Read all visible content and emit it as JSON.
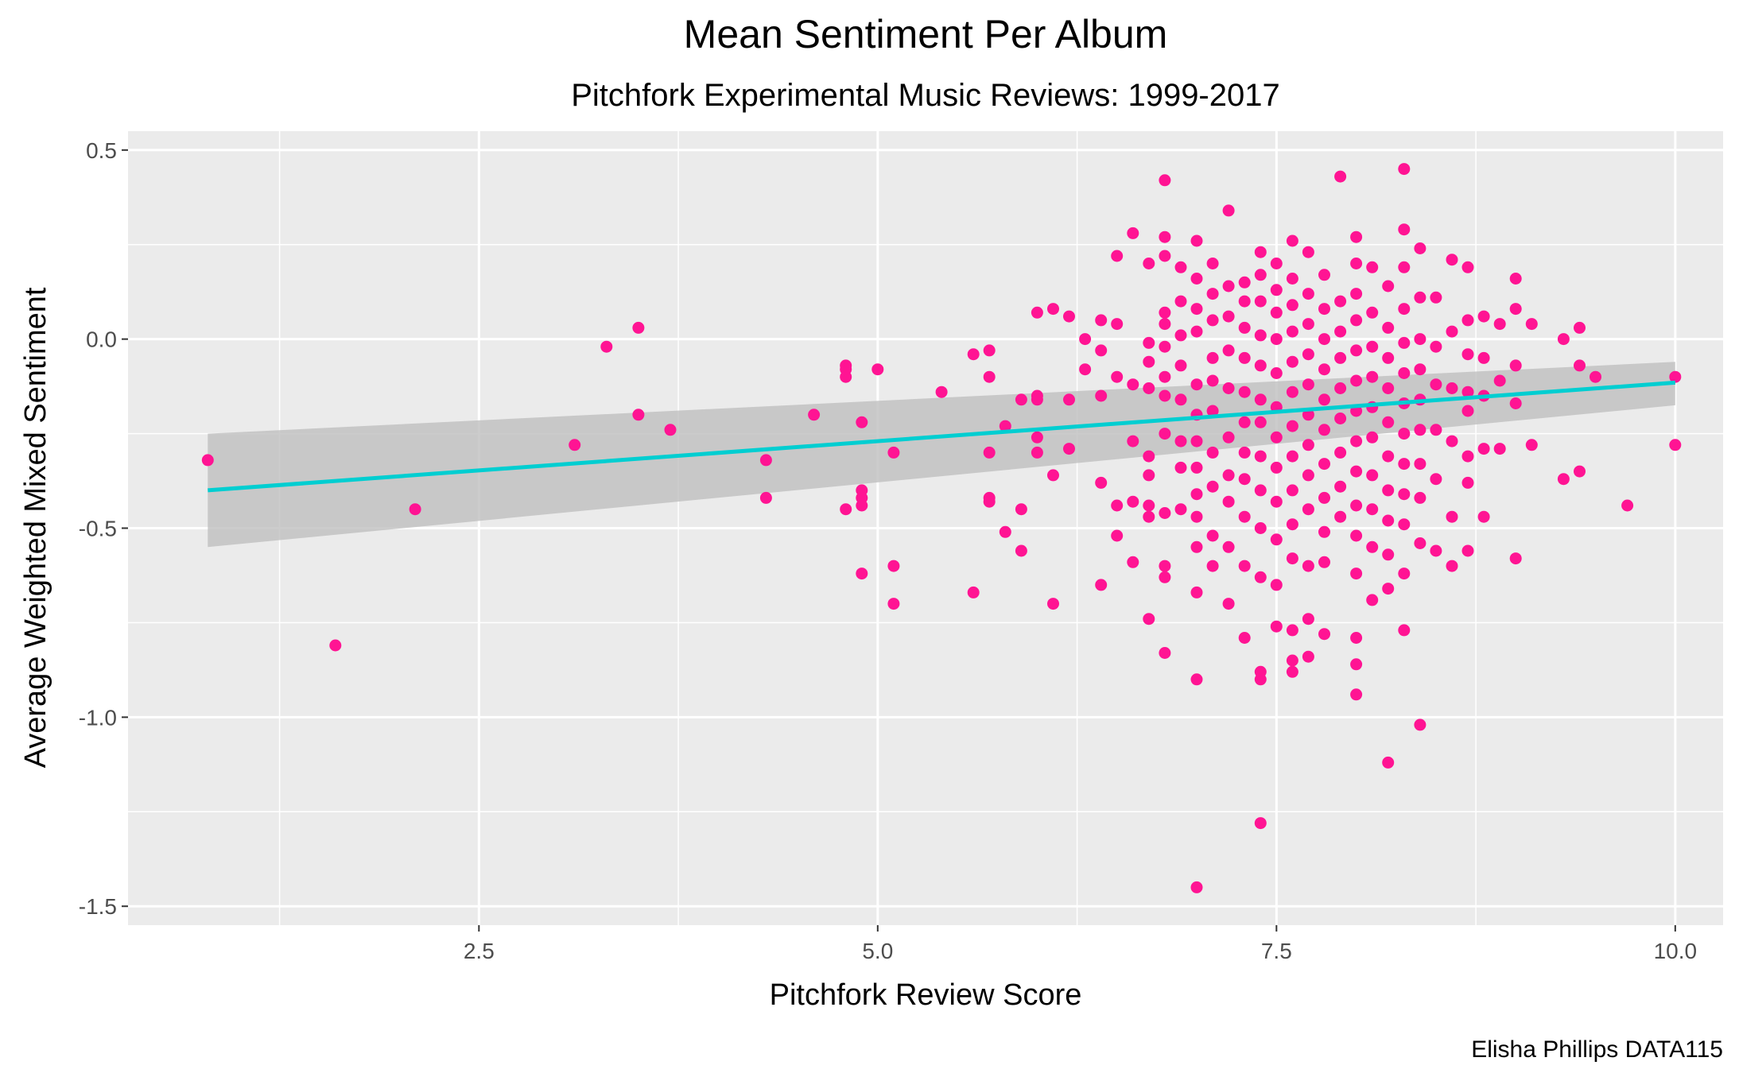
{
  "chart_data": {
    "type": "scatter",
    "title": "Mean Sentiment Per Album",
    "subtitle": "Pitchfork Experimental Music Reviews: 1999-2017",
    "xlabel": "Pitchfork Review Score",
    "ylabel": "Average Weighted Mixed Sentiment",
    "caption": "Elisha Phillips DATA115",
    "xlim": [
      0.3,
      10.3
    ],
    "ylim": [
      -1.55,
      0.55
    ],
    "x_ticks": [
      2.5,
      5.0,
      7.5,
      10.0
    ],
    "x_tick_labels": [
      "2.5",
      "5.0",
      "7.5",
      "10.0"
    ],
    "y_ticks": [
      0.5,
      0.0,
      -0.5,
      -1.0,
      -1.5
    ],
    "y_tick_labels": [
      "0.5",
      "0.0",
      "-0.5",
      "-1.0",
      "-1.5"
    ],
    "grid": true,
    "point_color": "#ff1493",
    "trend_color": "#00ced1",
    "band_color": "#bfbfbf",
    "panel_color": "#ebebeb",
    "trend_line": {
      "x": [
        0.8,
        10.0
      ],
      "y": [
        -0.4,
        -0.115
      ],
      "ci_lower": [
        -0.55,
        -0.175
      ],
      "ci_upper": [
        -0.25,
        -0.06
      ]
    },
    "points": [
      [
        0.8,
        -0.32
      ],
      [
        1.6,
        -0.81
      ],
      [
        2.1,
        -0.45
      ],
      [
        3.1,
        -0.28
      ],
      [
        3.3,
        -0.02
      ],
      [
        3.5,
        0.03
      ],
      [
        3.5,
        -0.2
      ],
      [
        3.7,
        -0.24
      ],
      [
        4.3,
        -0.32
      ],
      [
        4.3,
        -0.42
      ],
      [
        4.6,
        -0.2
      ],
      [
        4.8,
        -0.07
      ],
      [
        4.8,
        -0.08
      ],
      [
        4.8,
        -0.1
      ],
      [
        4.8,
        -0.45
      ],
      [
        4.9,
        -0.22
      ],
      [
        4.9,
        -0.4
      ],
      [
        4.9,
        -0.42
      ],
      [
        4.9,
        -0.44
      ],
      [
        4.9,
        -0.62
      ],
      [
        5.0,
        -0.08
      ],
      [
        5.1,
        -0.3
      ],
      [
        5.1,
        -0.6
      ],
      [
        5.1,
        -0.7
      ],
      [
        5.4,
        -0.14
      ],
      [
        5.6,
        -0.04
      ],
      [
        5.6,
        -0.67
      ],
      [
        5.7,
        -0.03
      ],
      [
        5.7,
        -0.1
      ],
      [
        5.7,
        -0.3
      ],
      [
        5.7,
        -0.42
      ],
      [
        5.7,
        -0.43
      ],
      [
        5.8,
        -0.23
      ],
      [
        5.8,
        -0.51
      ],
      [
        5.9,
        -0.16
      ],
      [
        5.9,
        -0.45
      ],
      [
        5.9,
        -0.56
      ],
      [
        6.0,
        0.07
      ],
      [
        6.0,
        -0.15
      ],
      [
        6.0,
        -0.16
      ],
      [
        6.0,
        -0.26
      ],
      [
        6.0,
        -0.3
      ],
      [
        6.1,
        0.08
      ],
      [
        6.1,
        -0.36
      ],
      [
        6.1,
        -0.7
      ],
      [
        6.2,
        0.06
      ],
      [
        6.2,
        -0.16
      ],
      [
        6.2,
        -0.29
      ],
      [
        6.3,
        0.0
      ],
      [
        6.3,
        -0.08
      ],
      [
        6.4,
        0.05
      ],
      [
        6.4,
        -0.03
      ],
      [
        6.4,
        -0.15
      ],
      [
        6.4,
        -0.38
      ],
      [
        6.4,
        -0.65
      ],
      [
        6.5,
        0.22
      ],
      [
        6.5,
        0.04
      ],
      [
        6.5,
        -0.1
      ],
      [
        6.5,
        -0.44
      ],
      [
        6.5,
        -0.52
      ],
      [
        6.6,
        0.28
      ],
      [
        6.6,
        -0.12
      ],
      [
        6.6,
        -0.27
      ],
      [
        6.6,
        -0.43
      ],
      [
        6.6,
        -0.59
      ],
      [
        6.7,
        0.2
      ],
      [
        6.7,
        -0.01
      ],
      [
        6.7,
        -0.06
      ],
      [
        6.7,
        -0.13
      ],
      [
        6.7,
        -0.31
      ],
      [
        6.7,
        -0.36
      ],
      [
        6.7,
        -0.44
      ],
      [
        6.7,
        -0.47
      ],
      [
        6.7,
        -0.74
      ],
      [
        6.8,
        0.42
      ],
      [
        6.8,
        0.27
      ],
      [
        6.8,
        0.22
      ],
      [
        6.8,
        0.07
      ],
      [
        6.8,
        0.04
      ],
      [
        6.8,
        -0.02
      ],
      [
        6.8,
        -0.1
      ],
      [
        6.8,
        -0.15
      ],
      [
        6.8,
        -0.25
      ],
      [
        6.8,
        -0.46
      ],
      [
        6.8,
        -0.6
      ],
      [
        6.8,
        -0.63
      ],
      [
        6.8,
        -0.83
      ],
      [
        6.9,
        0.19
      ],
      [
        6.9,
        0.1
      ],
      [
        6.9,
        0.01
      ],
      [
        6.9,
        -0.07
      ],
      [
        6.9,
        -0.16
      ],
      [
        6.9,
        -0.27
      ],
      [
        6.9,
        -0.34
      ],
      [
        6.9,
        -0.45
      ],
      [
        7.0,
        0.26
      ],
      [
        7.0,
        0.16
      ],
      [
        7.0,
        0.08
      ],
      [
        7.0,
        0.02
      ],
      [
        7.0,
        -0.12
      ],
      [
        7.0,
        -0.2
      ],
      [
        7.0,
        -0.27
      ],
      [
        7.0,
        -0.34
      ],
      [
        7.0,
        -0.41
      ],
      [
        7.0,
        -0.47
      ],
      [
        7.0,
        -0.55
      ],
      [
        7.0,
        -0.67
      ],
      [
        7.0,
        -0.9
      ],
      [
        7.0,
        -1.45
      ],
      [
        7.1,
        0.2
      ],
      [
        7.1,
        0.12
      ],
      [
        7.1,
        0.05
      ],
      [
        7.1,
        -0.05
      ],
      [
        7.1,
        -0.11
      ],
      [
        7.1,
        -0.19
      ],
      [
        7.1,
        -0.3
      ],
      [
        7.1,
        -0.39
      ],
      [
        7.1,
        -0.52
      ],
      [
        7.1,
        -0.6
      ],
      [
        7.2,
        0.34
      ],
      [
        7.2,
        0.14
      ],
      [
        7.2,
        0.06
      ],
      [
        7.2,
        -0.03
      ],
      [
        7.2,
        -0.13
      ],
      [
        7.2,
        -0.26
      ],
      [
        7.2,
        -0.36
      ],
      [
        7.2,
        -0.43
      ],
      [
        7.2,
        -0.55
      ],
      [
        7.2,
        -0.7
      ],
      [
        7.3,
        0.15
      ],
      [
        7.3,
        0.1
      ],
      [
        7.3,
        0.03
      ],
      [
        7.3,
        -0.05
      ],
      [
        7.3,
        -0.14
      ],
      [
        7.3,
        -0.22
      ],
      [
        7.3,
        -0.3
      ],
      [
        7.3,
        -0.37
      ],
      [
        7.3,
        -0.47
      ],
      [
        7.3,
        -0.6
      ],
      [
        7.3,
        -0.79
      ],
      [
        7.4,
        0.23
      ],
      [
        7.4,
        0.17
      ],
      [
        7.4,
        0.1
      ],
      [
        7.4,
        0.01
      ],
      [
        7.4,
        -0.07
      ],
      [
        7.4,
        -0.16
      ],
      [
        7.4,
        -0.22
      ],
      [
        7.4,
        -0.31
      ],
      [
        7.4,
        -0.4
      ],
      [
        7.4,
        -0.5
      ],
      [
        7.4,
        -0.63
      ],
      [
        7.4,
        -0.88
      ],
      [
        7.4,
        -0.9
      ],
      [
        7.4,
        -1.28
      ],
      [
        7.5,
        0.2
      ],
      [
        7.5,
        0.13
      ],
      [
        7.5,
        0.07
      ],
      [
        7.5,
        0.0
      ],
      [
        7.5,
        -0.09
      ],
      [
        7.5,
        -0.18
      ],
      [
        7.5,
        -0.26
      ],
      [
        7.5,
        -0.34
      ],
      [
        7.5,
        -0.43
      ],
      [
        7.5,
        -0.53
      ],
      [
        7.5,
        -0.65
      ],
      [
        7.5,
        -0.76
      ],
      [
        7.6,
        0.26
      ],
      [
        7.6,
        0.16
      ],
      [
        7.6,
        0.09
      ],
      [
        7.6,
        0.02
      ],
      [
        7.6,
        -0.06
      ],
      [
        7.6,
        -0.14
      ],
      [
        7.6,
        -0.23
      ],
      [
        7.6,
        -0.31
      ],
      [
        7.6,
        -0.4
      ],
      [
        7.6,
        -0.49
      ],
      [
        7.6,
        -0.58
      ],
      [
        7.6,
        -0.77
      ],
      [
        7.6,
        -0.85
      ],
      [
        7.6,
        -0.88
      ],
      [
        7.7,
        0.23
      ],
      [
        7.7,
        0.12
      ],
      [
        7.7,
        0.04
      ],
      [
        7.7,
        -0.04
      ],
      [
        7.7,
        -0.12
      ],
      [
        7.7,
        -0.2
      ],
      [
        7.7,
        -0.28
      ],
      [
        7.7,
        -0.36
      ],
      [
        7.7,
        -0.45
      ],
      [
        7.7,
        -0.6
      ],
      [
        7.7,
        -0.74
      ],
      [
        7.7,
        -0.84
      ],
      [
        7.8,
        0.17
      ],
      [
        7.8,
        0.08
      ],
      [
        7.8,
        0.0
      ],
      [
        7.8,
        -0.08
      ],
      [
        7.8,
        -0.16
      ],
      [
        7.8,
        -0.24
      ],
      [
        7.8,
        -0.33
      ],
      [
        7.8,
        -0.42
      ],
      [
        7.8,
        -0.51
      ],
      [
        7.8,
        -0.59
      ],
      [
        7.8,
        -0.78
      ],
      [
        7.9,
        0.43
      ],
      [
        7.9,
        0.1
      ],
      [
        7.9,
        0.02
      ],
      [
        7.9,
        -0.05
      ],
      [
        7.9,
        -0.13
      ],
      [
        7.9,
        -0.21
      ],
      [
        7.9,
        -0.3
      ],
      [
        7.9,
        -0.39
      ],
      [
        7.9,
        -0.47
      ],
      [
        8.0,
        0.27
      ],
      [
        8.0,
        0.2
      ],
      [
        8.0,
        0.12
      ],
      [
        8.0,
        0.05
      ],
      [
        8.0,
        -0.03
      ],
      [
        8.0,
        -0.11
      ],
      [
        8.0,
        -0.19
      ],
      [
        8.0,
        -0.27
      ],
      [
        8.0,
        -0.35
      ],
      [
        8.0,
        -0.44
      ],
      [
        8.0,
        -0.52
      ],
      [
        8.0,
        -0.62
      ],
      [
        8.0,
        -0.79
      ],
      [
        8.0,
        -0.86
      ],
      [
        8.0,
        -0.94
      ],
      [
        8.1,
        0.19
      ],
      [
        8.1,
        0.07
      ],
      [
        8.1,
        -0.02
      ],
      [
        8.1,
        -0.1
      ],
      [
        8.1,
        -0.18
      ],
      [
        8.1,
        -0.26
      ],
      [
        8.1,
        -0.36
      ],
      [
        8.1,
        -0.45
      ],
      [
        8.1,
        -0.55
      ],
      [
        8.1,
        -0.69
      ],
      [
        8.2,
        0.14
      ],
      [
        8.2,
        0.03
      ],
      [
        8.2,
        -0.05
      ],
      [
        8.2,
        -0.13
      ],
      [
        8.2,
        -0.22
      ],
      [
        8.2,
        -0.31
      ],
      [
        8.2,
        -0.4
      ],
      [
        8.2,
        -0.48
      ],
      [
        8.2,
        -0.57
      ],
      [
        8.2,
        -0.66
      ],
      [
        8.2,
        -1.12
      ],
      [
        8.3,
        0.45
      ],
      [
        8.3,
        0.29
      ],
      [
        8.3,
        0.19
      ],
      [
        8.3,
        0.08
      ],
      [
        8.3,
        -0.01
      ],
      [
        8.3,
        -0.09
      ],
      [
        8.3,
        -0.17
      ],
      [
        8.3,
        -0.25
      ],
      [
        8.3,
        -0.33
      ],
      [
        8.3,
        -0.41
      ],
      [
        8.3,
        -0.49
      ],
      [
        8.3,
        -0.62
      ],
      [
        8.3,
        -0.77
      ],
      [
        8.4,
        0.24
      ],
      [
        8.4,
        0.11
      ],
      [
        8.4,
        0.0
      ],
      [
        8.4,
        -0.08
      ],
      [
        8.4,
        -0.16
      ],
      [
        8.4,
        -0.24
      ],
      [
        8.4,
        -0.33
      ],
      [
        8.4,
        -0.42
      ],
      [
        8.4,
        -0.54
      ],
      [
        8.4,
        -1.02
      ],
      [
        8.5,
        0.11
      ],
      [
        8.5,
        -0.02
      ],
      [
        8.5,
        -0.12
      ],
      [
        8.5,
        -0.24
      ],
      [
        8.5,
        -0.37
      ],
      [
        8.5,
        -0.56
      ],
      [
        8.6,
        0.21
      ],
      [
        8.6,
        0.02
      ],
      [
        8.6,
        -0.13
      ],
      [
        8.6,
        -0.27
      ],
      [
        8.6,
        -0.47
      ],
      [
        8.6,
        -0.6
      ],
      [
        8.7,
        0.19
      ],
      [
        8.7,
        0.05
      ],
      [
        8.7,
        -0.04
      ],
      [
        8.7,
        -0.14
      ],
      [
        8.7,
        -0.19
      ],
      [
        8.7,
        -0.31
      ],
      [
        8.7,
        -0.38
      ],
      [
        8.7,
        -0.56
      ],
      [
        8.8,
        0.06
      ],
      [
        8.8,
        -0.05
      ],
      [
        8.8,
        -0.15
      ],
      [
        8.8,
        -0.29
      ],
      [
        8.8,
        -0.47
      ],
      [
        8.9,
        0.04
      ],
      [
        8.9,
        -0.11
      ],
      [
        8.9,
        -0.29
      ],
      [
        9.0,
        0.16
      ],
      [
        9.0,
        0.08
      ],
      [
        9.0,
        -0.07
      ],
      [
        9.0,
        -0.17
      ],
      [
        9.0,
        -0.58
      ],
      [
        9.1,
        0.04
      ],
      [
        9.1,
        -0.28
      ],
      [
        9.3,
        0.0
      ],
      [
        9.3,
        -0.37
      ],
      [
        9.4,
        0.03
      ],
      [
        9.4,
        -0.07
      ],
      [
        9.4,
        -0.35
      ],
      [
        9.5,
        -0.1
      ],
      [
        9.7,
        -0.44
      ],
      [
        10.0,
        -0.1
      ],
      [
        10.0,
        -0.28
      ]
    ]
  }
}
